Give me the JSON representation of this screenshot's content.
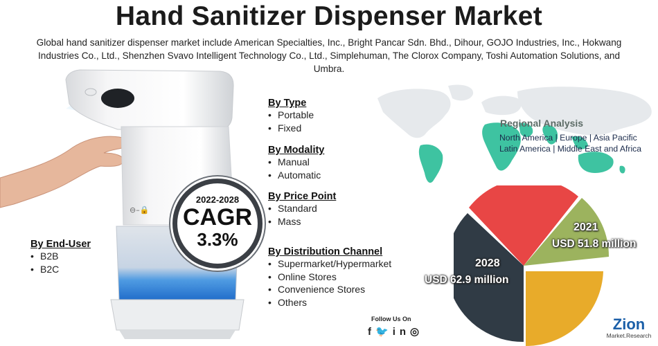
{
  "title": "Hand Sanitizer Dispenser Market",
  "intro": "Global hand sanitizer dispenser market include American Specialties, Inc., Bright Pancar Sdn. Bhd., Dihour, GOJO Industries, Inc., Hokwang Industries Co., Ltd., Shenzhen Svavo Intelligent Technology Co., Ltd., Simplehuman, The Clorox Company, Toshi Automation Solutions, and Umbra.",
  "segments": {
    "type": {
      "heading": "By Type",
      "items": [
        "Portable",
        "Fixed"
      ]
    },
    "modality": {
      "heading": "By Modality",
      "items": [
        "Manual",
        "Automatic"
      ]
    },
    "price_point": {
      "heading": "By Price Point",
      "items": [
        "Standard",
        "Mass"
      ]
    },
    "distribution": {
      "heading": "By Distribution Channel",
      "items": [
        "Supermarket/Hypermarket",
        "Online Stores",
        "Convenience Stores",
        "Others"
      ]
    },
    "end_user": {
      "heading": "By End-User",
      "items": [
        "B2B",
        "B2C"
      ]
    }
  },
  "cagr": {
    "years": "2022-2028",
    "label": "CAGR",
    "rate": "3.3%"
  },
  "regional": {
    "title": "Regional Analysis",
    "line1": "North America | Europe | Asia Pacific",
    "line2": "Latin America | Middle East and Africa"
  },
  "pie": {
    "year_2021": "2021",
    "value_2021": "USD 51.8 million",
    "year_2028": "2028",
    "value_2028": "USD 62.9 million",
    "colors": {
      "red": "#e84645",
      "green": "#9cb35e",
      "yellow": "#e8ab2a",
      "dark": "#303b45"
    }
  },
  "social": {
    "follow": "Follow Us On",
    "icons": [
      "facebook-icon",
      "twitter-icon",
      "linkedin-icon",
      "instagram-icon"
    ]
  },
  "logo": {
    "name": "Zion",
    "sub": "Market.Research"
  }
}
